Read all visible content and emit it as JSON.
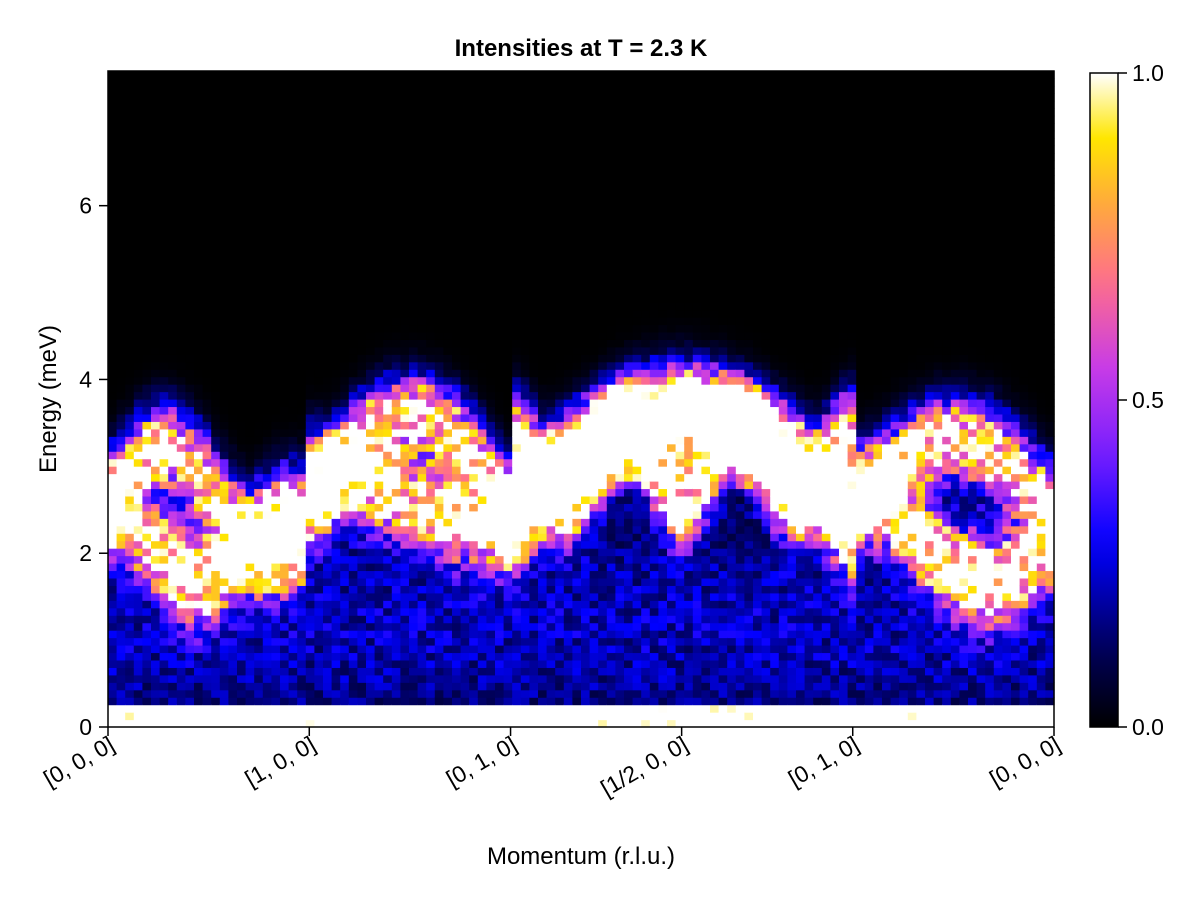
{
  "chart_data": {
    "type": "heatmap",
    "title": "Intensities at T = 2.3 K",
    "xlabel": "Momentum (r.l.u.)",
    "ylabel": "Energy (meV)",
    "x_ticks": [
      {
        "label": "[0, 0, 0]",
        "position": 0.0
      },
      {
        "label": "[1, 0, 0]",
        "position": 1.0
      },
      {
        "label": "[0, 1, 0]",
        "position": 2.0
      },
      {
        "label": "[1/2, 0, 0]",
        "position": 2.85
      },
      {
        "label": "[0, 1, 0]",
        "position": 3.7
      },
      {
        "label": "[0, 0, 0]",
        "position": 4.7
      }
    ],
    "xlim": [
      0,
      4.7
    ],
    "ylim": [
      0,
      7.55
    ],
    "y_ticks": [
      0,
      2,
      4,
      6
    ],
    "colorbar": {
      "colormap": "gnuplot2",
      "range": [
        0.0,
        1.0
      ],
      "ticks": [
        {
          "value": 0.0,
          "label": "0.0"
        },
        {
          "value": 0.5,
          "label": "0.5"
        },
        {
          "value": 1.0,
          "label": "1.0"
        }
      ]
    },
    "grid": false,
    "legend": "none",
    "bins": {
      "x_count": 110,
      "y_count": 88
    },
    "intensity_model": "Approximate spin-wave spectrum: bright bands near 2–3.5 meV, dome near [1/2, 0, 0] peaking ~3.8 meV, bright strip at E≈0, dark above ~4.5 meV"
  }
}
